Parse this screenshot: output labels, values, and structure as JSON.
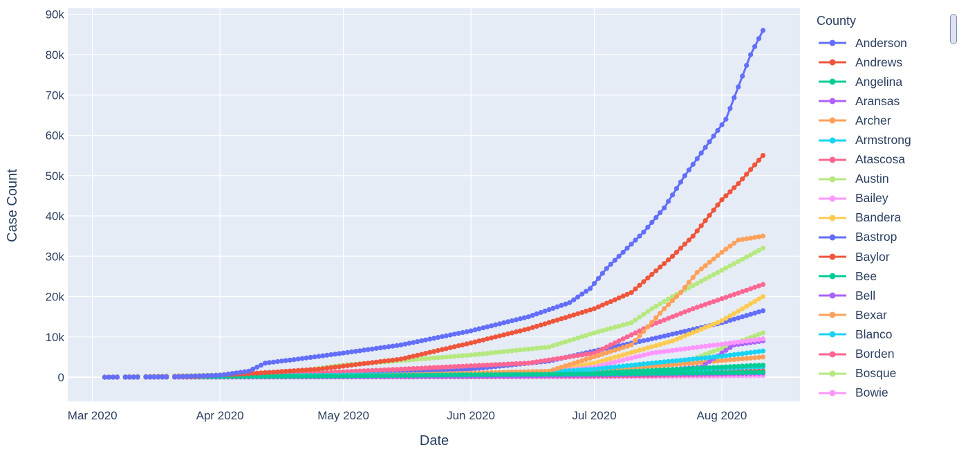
{
  "chart_data": {
    "type": "line",
    "title": "",
    "xlabel": "Date",
    "ylabel": "Case Count",
    "x_ticks": [
      "Mar 2020",
      "Apr 2020",
      "May 2020",
      "Jun 2020",
      "Jul 2020",
      "Aug 2020"
    ],
    "y_ticks": [
      "0",
      "10k",
      "20k",
      "30k",
      "40k",
      "50k",
      "60k",
      "70k",
      "80k",
      "90k"
    ],
    "xlim": [
      "2020-02-24",
      "2020-08-20"
    ],
    "ylim": [
      -6000,
      91500
    ],
    "grid": true,
    "legend_title": "County",
    "legend_position": "right",
    "series": [
      {
        "name": "Anderson",
        "color": "#636efa",
        "values": [
          [
            "2020-03-04",
            0
          ],
          [
            "2020-03-20",
            100
          ],
          [
            "2020-04-01",
            500
          ],
          [
            "2020-04-08",
            1500
          ],
          [
            "2020-04-12",
            3500
          ],
          [
            "2020-04-20",
            4500
          ],
          [
            "2020-05-01",
            6000
          ],
          [
            "2020-05-15",
            8000
          ],
          [
            "2020-06-01",
            11500
          ],
          [
            "2020-06-15",
            15000
          ],
          [
            "2020-06-25",
            18500
          ],
          [
            "2020-06-30",
            22000
          ],
          [
            "2020-07-04",
            27000
          ],
          [
            "2020-07-08",
            31000
          ],
          [
            "2020-07-13",
            36000
          ],
          [
            "2020-07-18",
            42000
          ],
          [
            "2020-07-23",
            50000
          ],
          [
            "2020-07-28",
            57000
          ],
          [
            "2020-08-02",
            64000
          ],
          [
            "2020-08-05",
            72000
          ],
          [
            "2020-08-08",
            80000
          ],
          [
            "2020-08-11",
            86000
          ]
        ]
      },
      {
        "name": "Andrews",
        "color": "#ef553b",
        "values": [
          [
            "2020-03-04",
            0
          ],
          [
            "2020-03-25",
            150
          ],
          [
            "2020-04-10",
            1000
          ],
          [
            "2020-04-25",
            2000
          ],
          [
            "2020-05-15",
            4500
          ],
          [
            "2020-06-01",
            8500
          ],
          [
            "2020-06-15",
            12000
          ],
          [
            "2020-07-01",
            17000
          ],
          [
            "2020-07-10",
            21000
          ],
          [
            "2020-07-20",
            30000
          ],
          [
            "2020-07-25",
            35000
          ],
          [
            "2020-08-01",
            44000
          ],
          [
            "2020-08-05",
            48000
          ],
          [
            "2020-08-11",
            55000
          ]
        ]
      },
      {
        "name": "Angelina",
        "color": "#00cc96",
        "values": [
          [
            "2020-03-04",
            0
          ],
          [
            "2020-05-01",
            300
          ],
          [
            "2020-06-01",
            600
          ],
          [
            "2020-07-01",
            800
          ],
          [
            "2020-08-11",
            1200
          ]
        ]
      },
      {
        "name": "Aransas",
        "color": "#ab63fa",
        "values": [
          [
            "2020-03-04",
            0
          ],
          [
            "2020-05-01",
            100
          ],
          [
            "2020-06-15",
            300
          ],
          [
            "2020-07-15",
            700
          ],
          [
            "2020-08-11",
            1000
          ]
        ]
      },
      {
        "name": "Archer",
        "color": "#ffa15a",
        "values": [
          [
            "2020-03-04",
            0
          ],
          [
            "2020-05-01",
            200
          ],
          [
            "2020-06-20",
            1500
          ],
          [
            "2020-07-10",
            8000
          ],
          [
            "2020-07-18",
            17000
          ],
          [
            "2020-07-22",
            21000
          ],
          [
            "2020-07-26",
            26000
          ],
          [
            "2020-08-01",
            31000
          ],
          [
            "2020-08-05",
            34000
          ],
          [
            "2020-08-11",
            35000
          ]
        ]
      },
      {
        "name": "Armstrong",
        "color": "#19d3f3",
        "values": [
          [
            "2020-03-04",
            0
          ],
          [
            "2020-05-01",
            500
          ],
          [
            "2020-06-15",
            1000
          ],
          [
            "2020-07-01",
            2000
          ],
          [
            "2020-07-15",
            3500
          ],
          [
            "2020-08-01",
            5200
          ],
          [
            "2020-08-11",
            6500
          ]
        ]
      },
      {
        "name": "Atascosa",
        "color": "#ff6692",
        "values": [
          [
            "2020-03-04",
            0
          ],
          [
            "2020-04-15",
            600
          ],
          [
            "2020-05-15",
            2000
          ],
          [
            "2020-06-15",
            3500
          ],
          [
            "2020-07-01",
            6000
          ],
          [
            "2020-07-15",
            13000
          ],
          [
            "2020-07-25",
            17000
          ],
          [
            "2020-08-11",
            23000
          ]
        ]
      },
      {
        "name": "Austin",
        "color": "#b6e880",
        "values": [
          [
            "2020-03-04",
            0
          ],
          [
            "2020-04-15",
            800
          ],
          [
            "2020-05-01",
            3000
          ],
          [
            "2020-06-01",
            5500
          ],
          [
            "2020-06-20",
            7500
          ],
          [
            "2020-07-01",
            11000
          ],
          [
            "2020-07-10",
            13500
          ],
          [
            "2020-07-15",
            17000
          ],
          [
            "2020-07-20",
            20000
          ],
          [
            "2020-08-11",
            32000
          ]
        ]
      },
      {
        "name": "Bailey",
        "color": "#ff97ff",
        "values": [
          [
            "2020-03-04",
            0
          ],
          [
            "2020-06-15",
            800
          ],
          [
            "2020-07-01",
            2500
          ],
          [
            "2020-07-15",
            6000
          ],
          [
            "2020-08-11",
            9500
          ]
        ]
      },
      {
        "name": "Bandera",
        "color": "#fecb52",
        "values": [
          [
            "2020-03-04",
            0
          ],
          [
            "2020-06-15",
            500
          ],
          [
            "2020-07-01",
            3500
          ],
          [
            "2020-07-20",
            9000
          ],
          [
            "2020-08-01",
            14000
          ],
          [
            "2020-08-11",
            20000
          ]
        ]
      },
      {
        "name": "Bastrop",
        "color": "#636efa",
        "values": [
          [
            "2020-03-04",
            0
          ],
          [
            "2020-05-01",
            500
          ],
          [
            "2020-06-01",
            2000
          ],
          [
            "2020-06-20",
            4000
          ],
          [
            "2020-07-01",
            6500
          ],
          [
            "2020-07-15",
            9500
          ],
          [
            "2020-08-01",
            13500
          ],
          [
            "2020-08-11",
            16500
          ]
        ]
      },
      {
        "name": "Baylor",
        "color": "#ef553b",
        "values": [
          [
            "2020-03-04",
            0
          ],
          [
            "2020-06-01",
            200
          ],
          [
            "2020-07-15",
            600
          ],
          [
            "2020-08-11",
            1500
          ]
        ]
      },
      {
        "name": "Bee",
        "color": "#00cc96",
        "values": [
          [
            "2020-03-04",
            0
          ],
          [
            "2020-06-01",
            400
          ],
          [
            "2020-07-01",
            1000
          ],
          [
            "2020-08-11",
            3000
          ]
        ]
      },
      {
        "name": "Bell",
        "color": "#ab63fa",
        "values": [
          [
            "2020-03-04",
            0
          ],
          [
            "2020-06-15",
            300
          ],
          [
            "2020-07-15",
            1500
          ],
          [
            "2020-07-27",
            2500
          ],
          [
            "2020-08-01",
            6000
          ],
          [
            "2020-08-04",
            8000
          ],
          [
            "2020-08-11",
            9000
          ]
        ]
      },
      {
        "name": "Bexar",
        "color": "#ffa15a",
        "values": [
          [
            "2020-03-04",
            0
          ],
          [
            "2020-06-01",
            300
          ],
          [
            "2020-07-01",
            1500
          ],
          [
            "2020-08-11",
            5000
          ]
        ]
      },
      {
        "name": "Blanco",
        "color": "#19d3f3",
        "values": [
          [
            "2020-03-04",
            0
          ],
          [
            "2020-06-01",
            200
          ],
          [
            "2020-07-01",
            800
          ],
          [
            "2020-08-11",
            2500
          ]
        ]
      },
      {
        "name": "Borden",
        "color": "#ff6692",
        "values": [
          [
            "2020-03-04",
            0
          ],
          [
            "2020-06-01",
            100
          ],
          [
            "2020-07-15",
            400
          ],
          [
            "2020-08-11",
            1000
          ]
        ]
      },
      {
        "name": "Bosque",
        "color": "#b6e880",
        "values": [
          [
            "2020-03-04",
            0
          ],
          [
            "2020-06-20",
            500
          ],
          [
            "2020-07-10",
            2500
          ],
          [
            "2020-07-25",
            4500
          ],
          [
            "2020-08-11",
            11000
          ]
        ]
      },
      {
        "name": "Bowie",
        "color": "#ff97ff",
        "values": [
          [
            "2020-03-04",
            0
          ],
          [
            "2020-07-01",
            100
          ],
          [
            "2020-08-11",
            400
          ]
        ]
      }
    ]
  }
}
